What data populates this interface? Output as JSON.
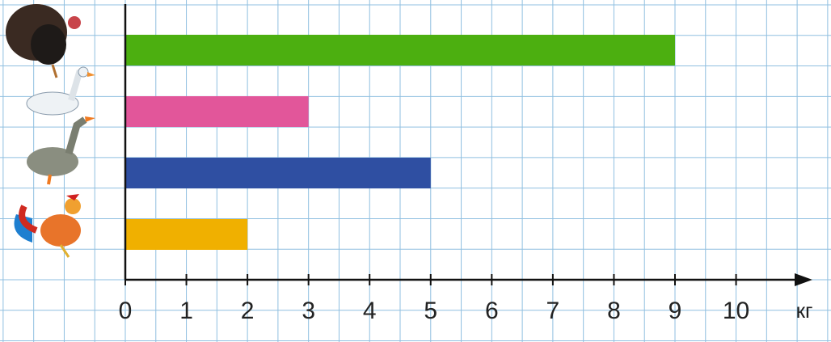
{
  "chart_data": {
    "type": "bar",
    "orientation": "horizontal",
    "categories": [
      null,
      null,
      null,
      null
    ],
    "values": [
      9,
      3,
      5,
      2
    ],
    "colors": [
      "#4caf10",
      "#e2569a",
      "#2f4fa2",
      "#f0b000"
    ],
    "xlim": [
      0,
      11.25
    ],
    "xticks": [
      0,
      1,
      2,
      3,
      4,
      5,
      6,
      7,
      8,
      9,
      10
    ],
    "x_label": "кг",
    "grid": true
  }
}
